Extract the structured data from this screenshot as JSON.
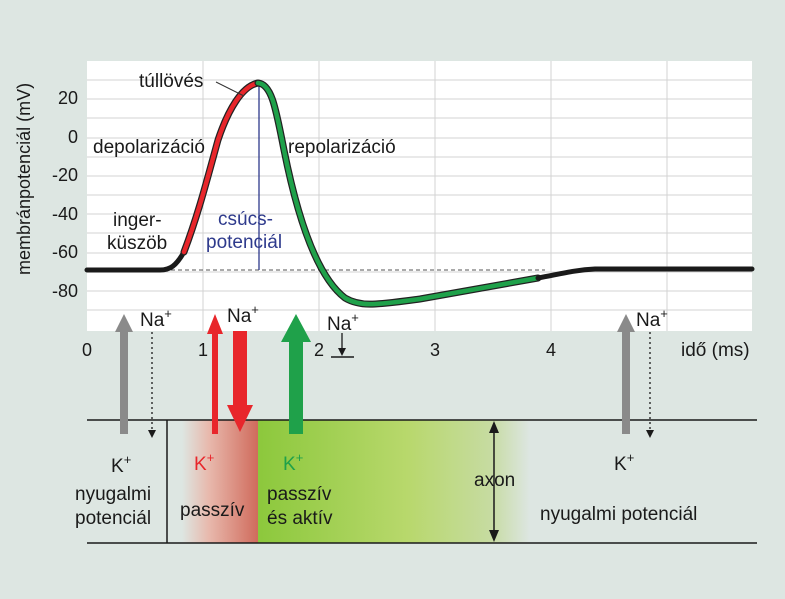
{
  "y_axis": {
    "label": "membránpotenciál (mV)",
    "ticks": [
      "20",
      "0",
      "-20",
      "-40",
      "-60",
      "-80"
    ]
  },
  "x_axis": {
    "label": "idő (ms)",
    "ticks": [
      "0",
      "1",
      "2",
      "3",
      "4"
    ]
  },
  "curve_labels": {
    "overshoot": "túllövés",
    "depolarization": "depolarizáció",
    "repolarization": "repolarizáció",
    "threshold_line1": "inger-",
    "threshold_line2": "küszöb",
    "spike_line1": "csúcs-",
    "spike_line2": "potenciál"
  },
  "ions": {
    "na": "Na",
    "k": "K",
    "charge": "+"
  },
  "zones": {
    "resting_left_line1": "nyugalmi",
    "resting_left_line2": "potenciál",
    "passive": "passzív",
    "passive_active_line1": "passzív",
    "passive_active_line2": "és aktív",
    "axon": "axon",
    "resting_right": "nyugalmi potenciál"
  },
  "colors": {
    "depolarization": "#e8262b",
    "repolarization": "#1fa14a",
    "baseline": "#1a1a1a",
    "spike_line": "#2e3a8c",
    "gray_arrow": "#8a8a8a"
  }
}
